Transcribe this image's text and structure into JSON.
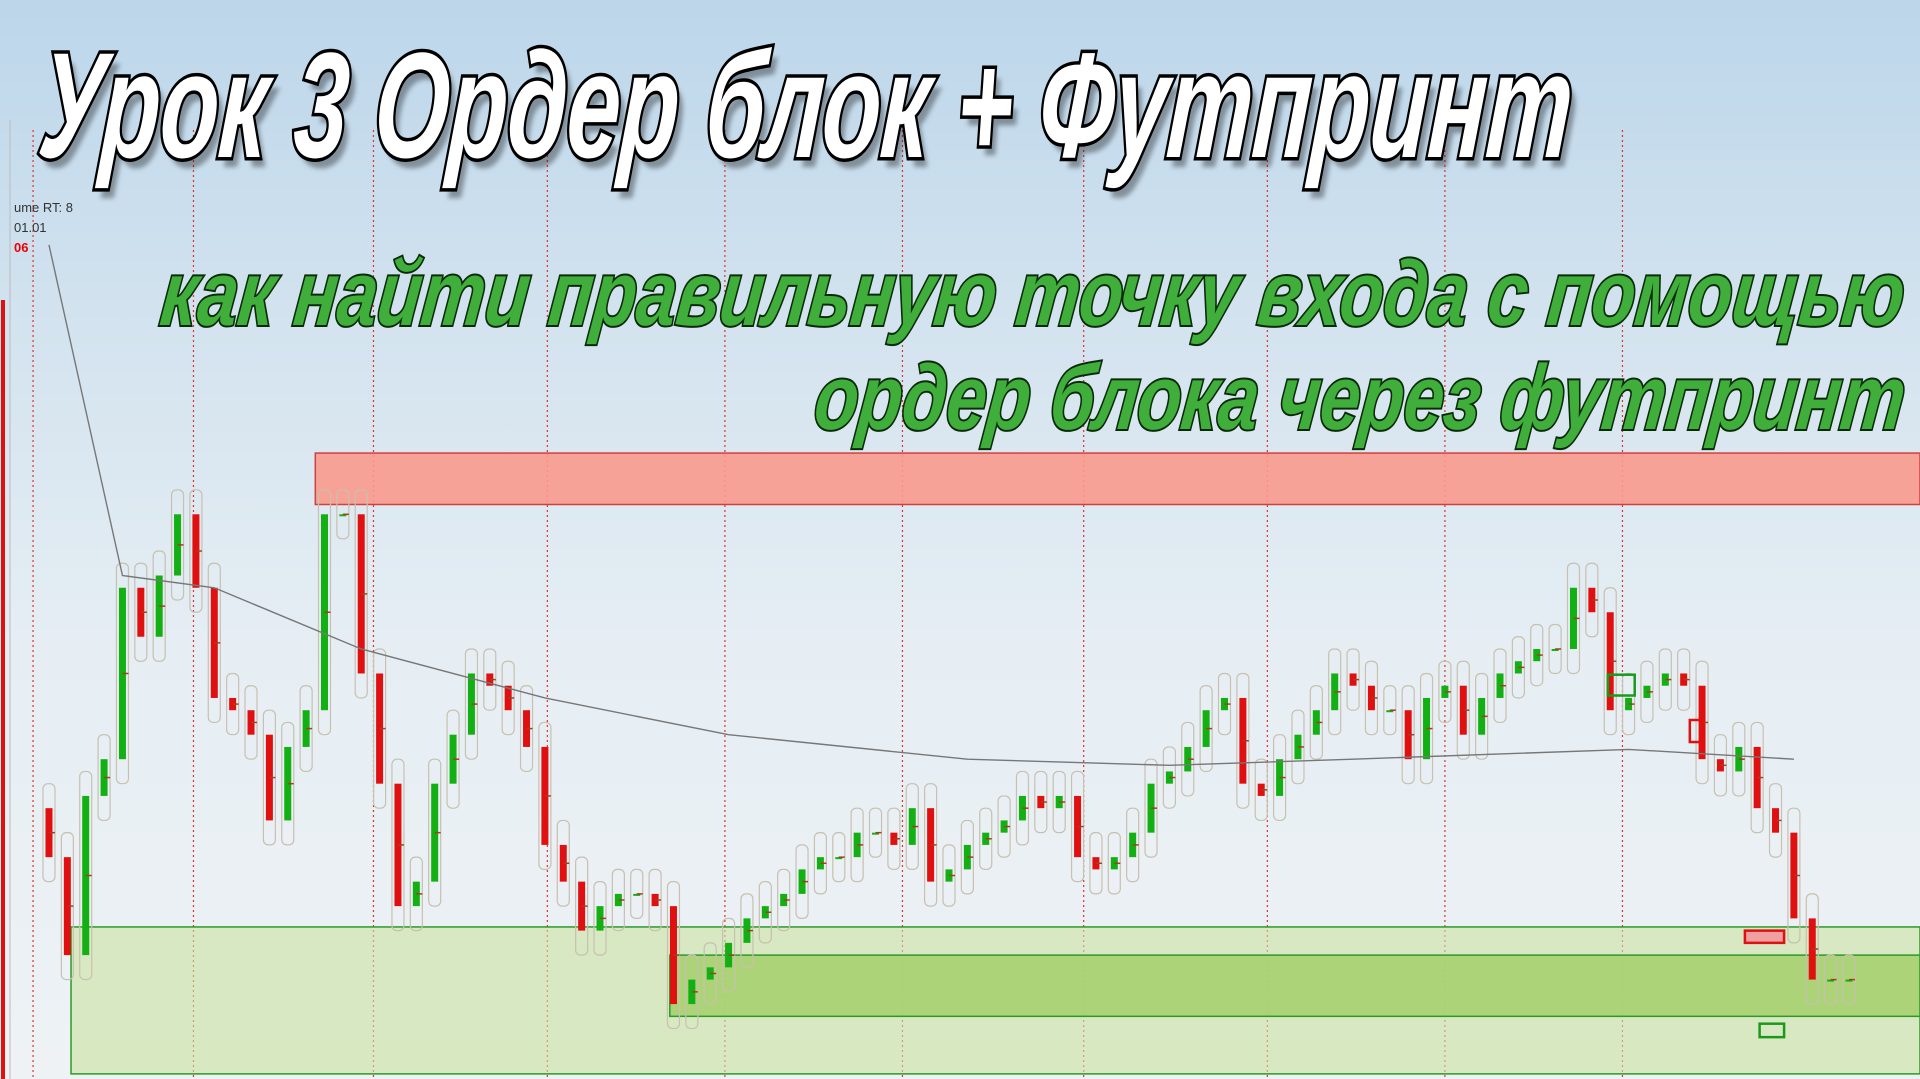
{
  "header": {
    "title": "Урок 3 Ордер блок + Футпринт",
    "subtitle_line1": "как найти правильную точку входа с помощью",
    "subtitle_line2": "ордер блока через футпринт"
  },
  "platform_fragments": {
    "indicator_label": "ume RT: 8",
    "date_field": "01.01",
    "time_label": "06"
  },
  "colors": {
    "bull": "#12b012",
    "bear": "#e01010",
    "supply_zone": "#f89a8c",
    "demand_zone": "#c9e3a0",
    "demand_zone_inner": "#a8d070",
    "title_text": "#ffffff",
    "subtitle_text": "#3fae3a",
    "session_line": "#e03030",
    "moving_average": "#777777"
  },
  "chart_data": {
    "type": "candlestick",
    "title": "",
    "xlabel": "",
    "ylabel": "",
    "grid": false,
    "closes": [
      30,
      22,
      35,
      38,
      52,
      48,
      53,
      58,
      52,
      43,
      42,
      40,
      33,
      39,
      42,
      58,
      58,
      45,
      36,
      26,
      28,
      36,
      40,
      45,
      44,
      42,
      39,
      31,
      28,
      24,
      26,
      27,
      27,
      26,
      18,
      20,
      21,
      23,
      25,
      26,
      27,
      29,
      30,
      30,
      32,
      32,
      31,
      34,
      28,
      29,
      31,
      32,
      33,
      35,
      34,
      35,
      30,
      29,
      30,
      32,
      36,
      37,
      39,
      42,
      43,
      36,
      35,
      38,
      40,
      42,
      45,
      44,
      42,
      42,
      38,
      43,
      44,
      40,
      43,
      45,
      46,
      47,
      47,
      52,
      50,
      42,
      43,
      44,
      45,
      44,
      38,
      37,
      39,
      34,
      32,
      25,
      20,
      20,
      20
    ],
    "moving_average": [
      [
        0,
        80
      ],
      [
        4,
        53
      ],
      [
        9,
        52
      ],
      [
        17,
        47
      ],
      [
        27,
        43
      ],
      [
        37,
        40
      ],
      [
        50,
        38
      ],
      [
        61,
        37.5
      ],
      [
        71,
        38
      ],
      [
        86,
        38.8
      ],
      [
        95,
        38
      ]
    ],
    "zones": [
      {
        "kind": "supply",
        "top": 63,
        "bottom": 58.8,
        "start_index": 14.5
      },
      {
        "kind": "demand",
        "top": 24.3,
        "bottom": 12.3,
        "start_index": 1.2
      },
      {
        "kind": "demand_inner",
        "top": 22,
        "bottom": 17,
        "start_index": 33.8
      }
    ]
  }
}
